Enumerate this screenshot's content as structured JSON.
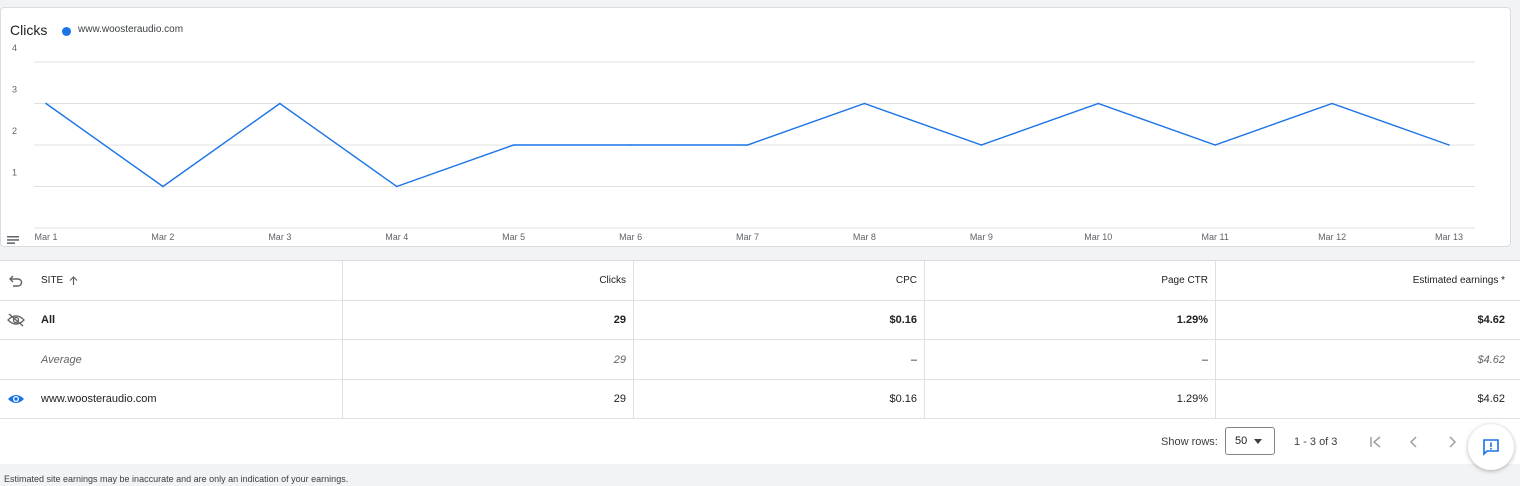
{
  "chart": {
    "title": "Clicks",
    "legend_label": "www.woosteraudio.com",
    "series_color": "#1a73e8"
  },
  "chart_data": {
    "type": "line",
    "title": "Clicks",
    "categories": [
      "Mar 1",
      "Mar 2",
      "Mar 3",
      "Mar 4",
      "Mar 5",
      "Mar 6",
      "Mar 7",
      "Mar 8",
      "Mar 9",
      "Mar 10",
      "Mar 11",
      "Mar 12",
      "Mar 13"
    ],
    "series": [
      {
        "name": "www.woosteraudio.com",
        "values": [
          3,
          1,
          3,
          1,
          2,
          2,
          2,
          3,
          2,
          3,
          2,
          3,
          2
        ]
      }
    ],
    "y_ticks": [
      "1",
      "2",
      "3",
      "4"
    ],
    "ylim": [
      0,
      4
    ],
    "grid": true
  },
  "table": {
    "headers": {
      "site": "SITE",
      "clicks": "Clicks",
      "cpc": "CPC",
      "ctr": "Page CTR",
      "earnings": "Estimated earnings *"
    },
    "total_row": {
      "site": "All",
      "clicks": "29",
      "cpc": "$0.16",
      "ctr": "1.29%",
      "earnings": "$4.62"
    },
    "average_row": {
      "site": "Average",
      "clicks": "29",
      "cpc": "–",
      "ctr": "–",
      "earnings": "$4.62"
    },
    "site_row": {
      "site": "www.woosteraudio.com",
      "clicks": "29",
      "cpc": "$0.16",
      "ctr": "1.29%",
      "earnings": "$4.62"
    }
  },
  "pagination": {
    "show_rows_label": "Show rows:",
    "rows_value": "50",
    "range": "1 - 3 of 3"
  },
  "disclaimer": "Estimated site earnings may be inaccurate and are only an indication of your earnings."
}
